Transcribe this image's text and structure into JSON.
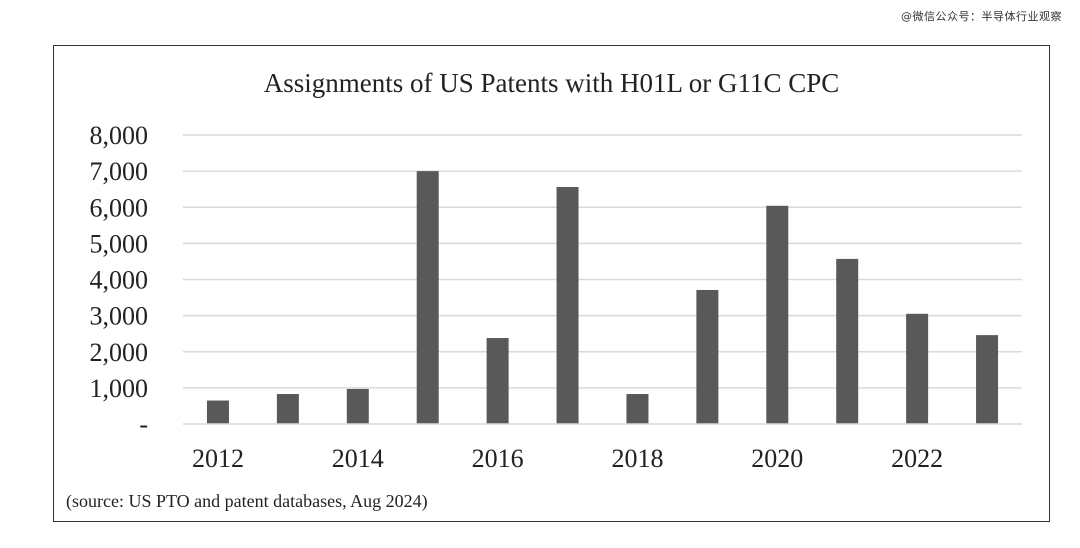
{
  "watermark": "@微信公众号：半导体行业观察",
  "chart_data": {
    "type": "bar",
    "title": "Assignments of US Patents with H01L  or G11C  CPC",
    "source_note": "(source: US PTO and patent databases, Aug  2024)",
    "categories": [
      "2012",
      "2013",
      "2014",
      "2015",
      "2016",
      "2017",
      "2018",
      "2019",
      "2020",
      "2021",
      "2022",
      "2023"
    ],
    "x_tick_labels": [
      "2012",
      "",
      "2014",
      "",
      "2016",
      "",
      "2018",
      "",
      "2020",
      "",
      "2022",
      ""
    ],
    "values": [
      650,
      830,
      970,
      7000,
      2380,
      6560,
      830,
      3710,
      6040,
      4570,
      3050,
      2460
    ],
    "y_tick_labels": [
      "-",
      "1,000",
      "2,000",
      "3,000",
      "4,000",
      "5,000",
      "6,000",
      "7,000",
      "8,000"
    ],
    "ylim": [
      0,
      8000
    ],
    "grid": true,
    "bar_color": "#595959",
    "grid_color": "#d9d9d9"
  }
}
